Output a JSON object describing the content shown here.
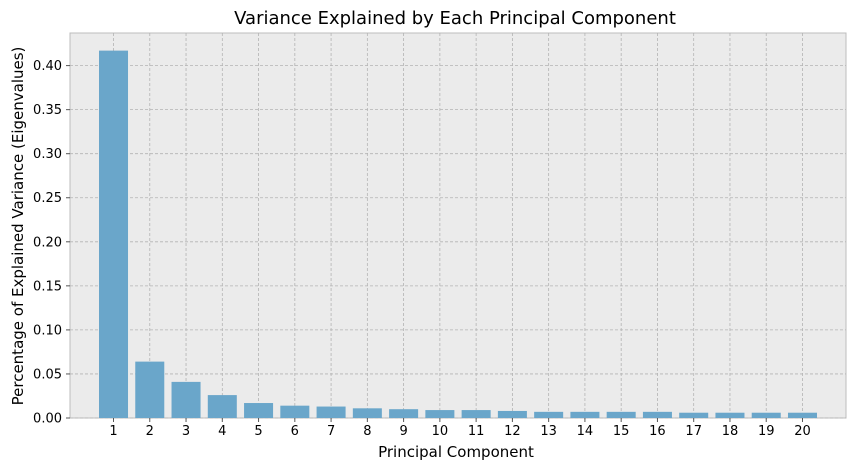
{
  "chart_data": {
    "type": "bar",
    "title": "Variance Explained by Each Principal Component",
    "xlabel": "Principal Component",
    "ylabel": "Percentage of Explained Variance (Eigenvalues)",
    "categories": [
      "1",
      "2",
      "3",
      "4",
      "5",
      "6",
      "7",
      "8",
      "9",
      "10",
      "11",
      "12",
      "13",
      "14",
      "15",
      "16",
      "17",
      "18",
      "19",
      "20"
    ],
    "values": [
      0.417,
      0.064,
      0.041,
      0.026,
      0.017,
      0.014,
      0.013,
      0.011,
      0.01,
      0.009,
      0.009,
      0.008,
      0.007,
      0.007,
      0.007,
      0.007,
      0.006,
      0.006,
      0.006,
      0.006
    ],
    "ylim": [
      0,
      0.437
    ],
    "yticks": [
      "0.00",
      "0.05",
      "0.10",
      "0.15",
      "0.20",
      "0.25",
      "0.30",
      "0.35",
      "0.40"
    ],
    "grid": true,
    "colors": {
      "bar": "#6aa6ca",
      "plot_background": "#ebebeb",
      "grid": "#b3b3b3",
      "frame": "#bcbcbc"
    }
  }
}
